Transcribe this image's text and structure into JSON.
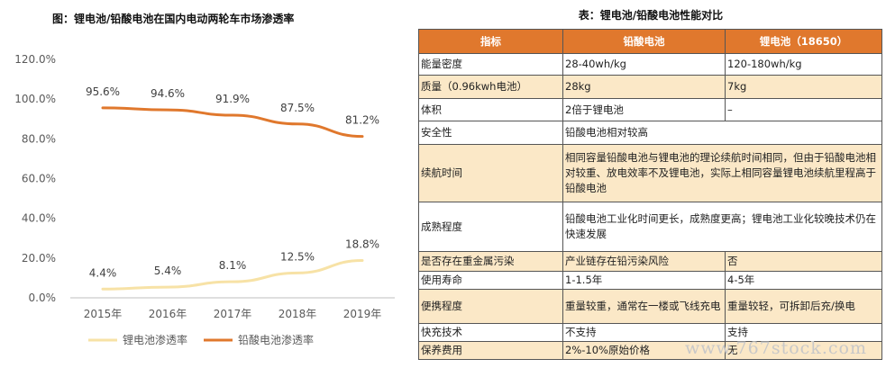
{
  "chart_data": {
    "type": "line",
    "title": "图：锂电池/铅酸电池在国内电动两轮车市场渗透率",
    "categories": [
      "2015年",
      "2016年",
      "2017年",
      "2018年",
      "2019年"
    ],
    "series": [
      {
        "name": "锂电池渗透率",
        "values": [
          4.4,
          5.4,
          8.1,
          12.5,
          18.8
        ],
        "labels": [
          "4.4%",
          "5.4%",
          "8.1%",
          "12.5%",
          "18.8%"
        ],
        "color": "#f7e2a6"
      },
      {
        "name": "铅酸电池渗透率",
        "values": [
          95.6,
          94.6,
          91.9,
          87.5,
          81.2
        ],
        "labels": [
          "95.6%",
          "94.6%",
          "91.9%",
          "87.5%",
          "81.2%"
        ],
        "color": "#e0782d"
      }
    ],
    "ylim": [
      0,
      120
    ],
    "yticks": [
      0,
      20,
      40,
      60,
      80,
      100,
      120
    ],
    "ytick_labels": [
      "0.0%",
      "20.0%",
      "40.0%",
      "60.0%",
      "80.0%",
      "100.0%",
      "120.0%"
    ],
    "grid": false,
    "legend": "bottom"
  },
  "table": {
    "title": "表：锂电池/铅酸电池性能对比",
    "headers": [
      "指标",
      "铅酸电池",
      "锂电池（18650）"
    ],
    "rows": [
      {
        "label": "能量密度",
        "cells": [
          "28-40wh/kg",
          "120-180wh/kg"
        ]
      },
      {
        "label": "质量（0.96kwh电池）",
        "cells": [
          "28kg",
          "7kg"
        ]
      },
      {
        "label": "体积",
        "cells": [
          "2倍于锂电池",
          "–"
        ]
      },
      {
        "label": "安全性",
        "cells": [
          "铅酸电池相对较高"
        ]
      },
      {
        "label": "续航时间",
        "cells": [
          "相同容量铅酸电池与锂电池的理论续航时间相同，但由于铅酸电池相对较重、放电效率不及锂电池，实际上相同容量锂电池续航里程高于铅酸电池"
        ]
      },
      {
        "label": "成熟程度",
        "cells": [
          "铅酸电池工业化时间更长，成熟度更高；锂电池工业化较晚技术仍在快速发展"
        ]
      },
      {
        "label": "是否存在重金属污染",
        "cells": [
          "产业链存在铅污染风险",
          "否"
        ]
      },
      {
        "label": "使用寿命",
        "cells": [
          "1-1.5年",
          "4-5年"
        ]
      },
      {
        "label": "便携程度",
        "cells": [
          "重量较重，通常在一楼或飞线充电",
          "重量较轻，可拆卸后充/换电"
        ]
      },
      {
        "label": "快充技术",
        "cells": [
          "不支持",
          "支持"
        ]
      },
      {
        "label": "保养费用",
        "cells": [
          "2%-10%原始价格",
          "无"
        ]
      }
    ]
  },
  "watermark": "www.767stock.com"
}
